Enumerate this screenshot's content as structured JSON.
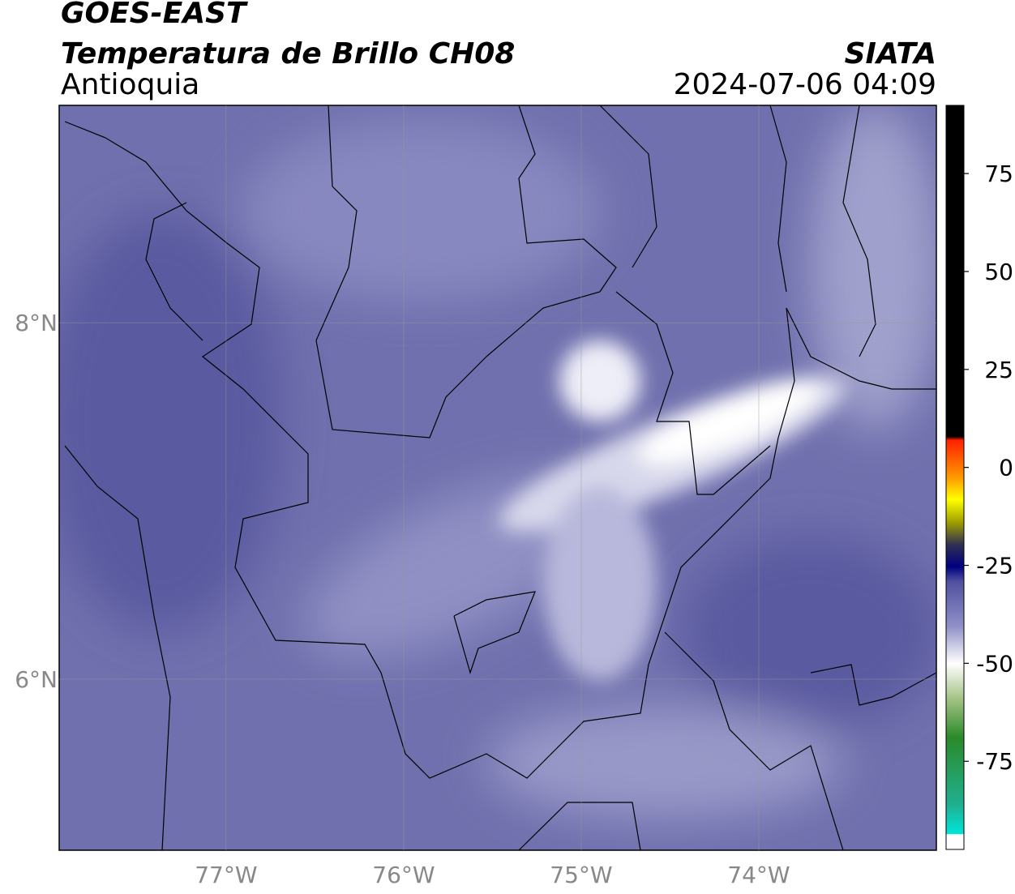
{
  "header": {
    "title": "GOES-EAST",
    "subtitle": "Temperatura de Brillo CH08",
    "region": "Antioquia",
    "source": "SIATA",
    "datetime": "2024-07-06 04:09"
  },
  "map": {
    "xlim": [
      -77.94,
      -73.0
    ],
    "ylim": [
      5.04,
      9.22
    ],
    "xticks": [
      {
        "value": -77,
        "label": "77°W"
      },
      {
        "value": -76,
        "label": "76°W"
      },
      {
        "value": -75,
        "label": "75°W"
      },
      {
        "value": -74,
        "label": "74°W"
      }
    ],
    "yticks": [
      {
        "value": 8,
        "label": "8°N"
      },
      {
        "value": 6,
        "label": "6°N"
      }
    ],
    "grid": true
  },
  "colorbar": {
    "lim": [
      -97.5,
      92.4
    ],
    "ticks": [
      75,
      50,
      25,
      0,
      -25,
      -50,
      -75
    ]
  }
}
